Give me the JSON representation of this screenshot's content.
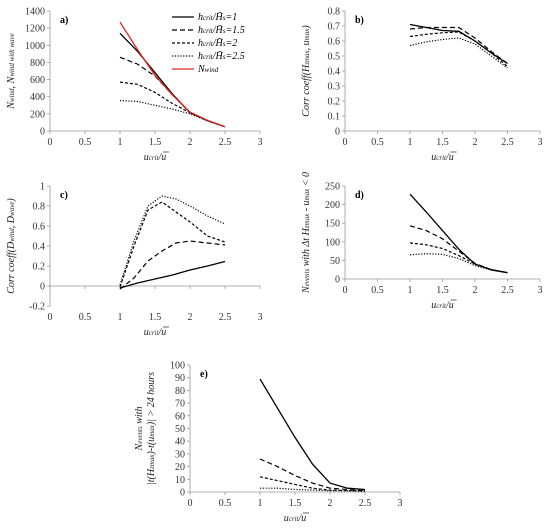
{
  "chart_data": [
    {
      "id": "a",
      "type": "line",
      "panel_label": "a)",
      "xlabel": "u_crit/ū",
      "ylabel": "N_wind, N_wind with wave",
      "xlim": [
        0,
        3
      ],
      "ylim": [
        0,
        1400
      ],
      "xticks": [
        0,
        0.5,
        1,
        1.5,
        2,
        2.5,
        3
      ],
      "yticks": [
        0,
        200,
        400,
        600,
        800,
        1000,
        1200,
        1400
      ],
      "xtick_labels": [
        "0",
        "0.5",
        "1",
        "1.5",
        "2",
        "2.5",
        "3"
      ],
      "ytick_labels": [
        "0",
        "200",
        "400",
        "600",
        "800",
        "1000",
        "1200",
        "1400"
      ],
      "legend_position": "top-right",
      "series": [
        {
          "name": "h_crit/H̄s=1",
          "style": "solid",
          "color": "#000000",
          "x": [
            1,
            1.25,
            1.5,
            1.75,
            2,
            2.25,
            2.5
          ],
          "y": [
            1140,
            930,
            680,
            430,
            215,
            120,
            50
          ]
        },
        {
          "name": "h_crit/H̄s=1.5",
          "style": "dashed",
          "color": "#000000",
          "x": [
            1,
            1.25,
            1.5,
            1.75,
            2,
            2.25,
            2.5
          ],
          "y": [
            860,
            780,
            640,
            420,
            215,
            120,
            50
          ]
        },
        {
          "name": "h_crit/H̄s=2",
          "style": "dashed",
          "color": "#000000",
          "x": [
            1,
            1.25,
            1.5,
            1.75,
            2,
            2.25,
            2.5
          ],
          "y": [
            570,
            545,
            450,
            320,
            215,
            120,
            50
          ]
        },
        {
          "name": "h_crit/H̄s=2.5",
          "style": "dotted",
          "color": "#000000",
          "x": [
            1,
            1.25,
            1.5,
            1.75,
            2,
            2.25,
            2.5
          ],
          "y": [
            355,
            345,
            300,
            255,
            200,
            120,
            50
          ]
        },
        {
          "name": "N_wind",
          "style": "solid",
          "color": "#e32626",
          "x": [
            1,
            1.25,
            1.5,
            1.75,
            2,
            2.25,
            2.5
          ],
          "y": [
            1270,
            950,
            650,
            420,
            220,
            125,
            50
          ]
        }
      ]
    },
    {
      "id": "b",
      "type": "line",
      "panel_label": "b)",
      "xlabel": "u_crit/ū",
      "ylabel": "Corr coeff(H_zmax, u_max)",
      "xlim": [
        0,
        3
      ],
      "ylim": [
        0,
        0.8
      ],
      "xticks": [
        0,
        0.5,
        1,
        1.5,
        2,
        2.5,
        3
      ],
      "yticks": [
        0,
        0.1,
        0.2,
        0.3,
        0.4,
        0.5,
        0.6,
        0.7,
        0.8
      ],
      "xtick_labels": [
        "0",
        "0.5",
        "1",
        "1.5",
        "2",
        "2.5",
        "3"
      ],
      "ytick_labels": [
        "0",
        "0.1",
        "0.2",
        "0.3",
        "0.4",
        "0.5",
        "0.6",
        "0.7",
        "0.8"
      ],
      "series": [
        {
          "name": "h_crit/H̄s=1",
          "style": "solid",
          "color": "#000000",
          "x": [
            1,
            1.25,
            1.5,
            1.75,
            2,
            2.25,
            2.5
          ],
          "y": [
            0.71,
            0.69,
            0.67,
            0.665,
            0.6,
            0.52,
            0.45
          ]
        },
        {
          "name": "h_crit/H̄s=1.5",
          "style": "dashed",
          "color": "#000000",
          "x": [
            1,
            1.25,
            1.5,
            1.75,
            2,
            2.25,
            2.5
          ],
          "y": [
            0.68,
            0.69,
            0.69,
            0.69,
            0.62,
            0.53,
            0.45
          ]
        },
        {
          "name": "h_crit/H̄s=2",
          "style": "dashed",
          "color": "#000000",
          "x": [
            1,
            1.25,
            1.5,
            1.75,
            2,
            2.25,
            2.5
          ],
          "y": [
            0.63,
            0.645,
            0.655,
            0.66,
            0.6,
            0.52,
            0.43
          ]
        },
        {
          "name": "h_crit/H̄s=2.5",
          "style": "dotted",
          "color": "#000000",
          "x": [
            1,
            1.25,
            1.5,
            1.75,
            2,
            2.25,
            2.5
          ],
          "y": [
            0.57,
            0.595,
            0.61,
            0.62,
            0.58,
            0.5,
            0.42
          ]
        }
      ]
    },
    {
      "id": "c",
      "type": "line",
      "panel_label": "c)",
      "xlabel": "u_crit/ū",
      "ylabel": "Corr coeff(D_wind, D_wave)",
      "xlim": [
        0,
        3
      ],
      "ylim": [
        -0.2,
        1
      ],
      "xticks": [
        0,
        0.5,
        1,
        1.5,
        2,
        2.5,
        3
      ],
      "yticks": [
        -0.2,
        0,
        0.2,
        0.4,
        0.6,
        0.8,
        1
      ],
      "xtick_labels": [
        "0",
        "0.5",
        "1",
        "1.5",
        "2",
        "2.5",
        "3"
      ],
      "ytick_labels": [
        "-0.2",
        "0",
        "0.2",
        "0.4",
        "0.6",
        "0.8",
        "1"
      ],
      "series": [
        {
          "name": "h_crit/H̄s=1",
          "style": "solid",
          "color": "#000000",
          "x": [
            1,
            1.25,
            1.5,
            1.75,
            2,
            2.25,
            2.5
          ],
          "y": [
            -0.02,
            0.03,
            0.07,
            0.11,
            0.16,
            0.2,
            0.245
          ]
        },
        {
          "name": "h_crit/H̄s=1.5",
          "style": "dashed",
          "color": "#000000",
          "x": [
            1,
            1.2,
            1.4,
            1.6,
            1.8,
            2,
            2.25,
            2.5
          ],
          "y": [
            -0.03,
            0.08,
            0.25,
            0.35,
            0.43,
            0.45,
            0.43,
            0.41
          ]
        },
        {
          "name": "h_crit/H̄s=2",
          "style": "dashed",
          "color": "#000000",
          "x": [
            1,
            1.2,
            1.4,
            1.6,
            1.8,
            2,
            2.25,
            2.5
          ],
          "y": [
            -0.01,
            0.4,
            0.76,
            0.84,
            0.74,
            0.64,
            0.5,
            0.44
          ]
        },
        {
          "name": "h_crit/H̄s=2.5",
          "style": "dotted",
          "color": "#000000",
          "x": [
            1,
            1.2,
            1.4,
            1.6,
            1.8,
            2,
            2.25,
            2.5
          ],
          "y": [
            0.01,
            0.45,
            0.8,
            0.9,
            0.87,
            0.8,
            0.7,
            0.62
          ]
        }
      ]
    },
    {
      "id": "d",
      "type": "line",
      "panel_label": "d)",
      "xlabel": "u_crit/ū",
      "ylabel": "N_events with Δt H_zmax - u_max < 0",
      "xlim": [
        0,
        3
      ],
      "ylim": [
        0,
        250
      ],
      "xticks": [
        0,
        0.5,
        1,
        1.5,
        2,
        2.5,
        3
      ],
      "yticks": [
        0,
        50,
        100,
        150,
        200,
        250
      ],
      "xtick_labels": [
        "0",
        "0.5",
        "1",
        "1.5",
        "2",
        "2.5",
        "3"
      ],
      "ytick_labels": [
        "0",
        "50",
        "100",
        "150",
        "200",
        "250"
      ],
      "series": [
        {
          "name": "h_crit/H̄s=1",
          "style": "solid",
          "color": "#000000",
          "x": [
            1,
            1.25,
            1.5,
            1.75,
            2,
            2.25,
            2.5
          ],
          "y": [
            228,
            180,
            130,
            80,
            40,
            25,
            17
          ]
        },
        {
          "name": "h_crit/H̄s=1.5",
          "style": "dashed",
          "color": "#000000",
          "x": [
            1,
            1.25,
            1.5,
            1.75,
            2,
            2.25,
            2.5
          ],
          "y": [
            143,
            130,
            108,
            75,
            42,
            25,
            17
          ]
        },
        {
          "name": "h_crit/H̄s=2",
          "style": "dashed",
          "color": "#000000",
          "x": [
            1,
            1.25,
            1.5,
            1.75,
            2,
            2.25,
            2.5
          ],
          "y": [
            97,
            92,
            82,
            63,
            40,
            25,
            17
          ]
        },
        {
          "name": "h_crit/H̄s=2.5",
          "style": "dotted",
          "color": "#000000",
          "x": [
            1,
            1.25,
            1.5,
            1.75,
            2,
            2.25,
            2.5
          ],
          "y": [
            65,
            68,
            66,
            55,
            36,
            24,
            17
          ]
        }
      ]
    },
    {
      "id": "e",
      "type": "line",
      "panel_label": "e)",
      "xlabel": "u_crit/ū",
      "ylabel": "N_events with |t(H_zmax)-t(u_max)| > 24 hours",
      "xlim": [
        0,
        3
      ],
      "ylim": [
        0,
        100
      ],
      "xticks": [
        0,
        0.5,
        1,
        1.5,
        2,
        2.5,
        3
      ],
      "yticks": [
        0,
        10,
        20,
        30,
        40,
        50,
        60,
        70,
        80,
        90,
        100
      ],
      "xtick_labels": [
        "0",
        "0.5",
        "1",
        "1.5",
        "2",
        "2.5",
        "3"
      ],
      "ytick_labels": [
        "0",
        "10",
        "20",
        "30",
        "40",
        "50",
        "60",
        "70",
        "80",
        "90",
        "100"
      ],
      "series": [
        {
          "name": "h_crit/H̄s=1",
          "style": "solid",
          "color": "#000000",
          "x": [
            1,
            1.25,
            1.5,
            1.75,
            2,
            2.25,
            2.5
          ],
          "y": [
            89,
            66,
            43,
            22,
            7,
            3,
            2
          ]
        },
        {
          "name": "h_crit/H̄s=1.5",
          "style": "dashed",
          "color": "#000000",
          "x": [
            1,
            1.25,
            1.5,
            1.75,
            2,
            2.25,
            2.5
          ],
          "y": [
            26,
            20,
            13,
            7,
            3,
            2,
            1
          ]
        },
        {
          "name": "h_crit/H̄s=2",
          "style": "dashed",
          "color": "#000000",
          "x": [
            1,
            1.25,
            1.5,
            1.75,
            2,
            2.25,
            2.5
          ],
          "y": [
            12,
            9,
            6,
            3,
            1.5,
            1,
            1
          ]
        },
        {
          "name": "h_crit/H̄s=2.5",
          "style": "dotted",
          "color": "#000000",
          "x": [
            1,
            1.25,
            1.5,
            1.75,
            2,
            2.25,
            2.5
          ],
          "y": [
            3,
            3,
            2,
            1.5,
            1,
            1,
            0.5
          ]
        }
      ]
    }
  ]
}
